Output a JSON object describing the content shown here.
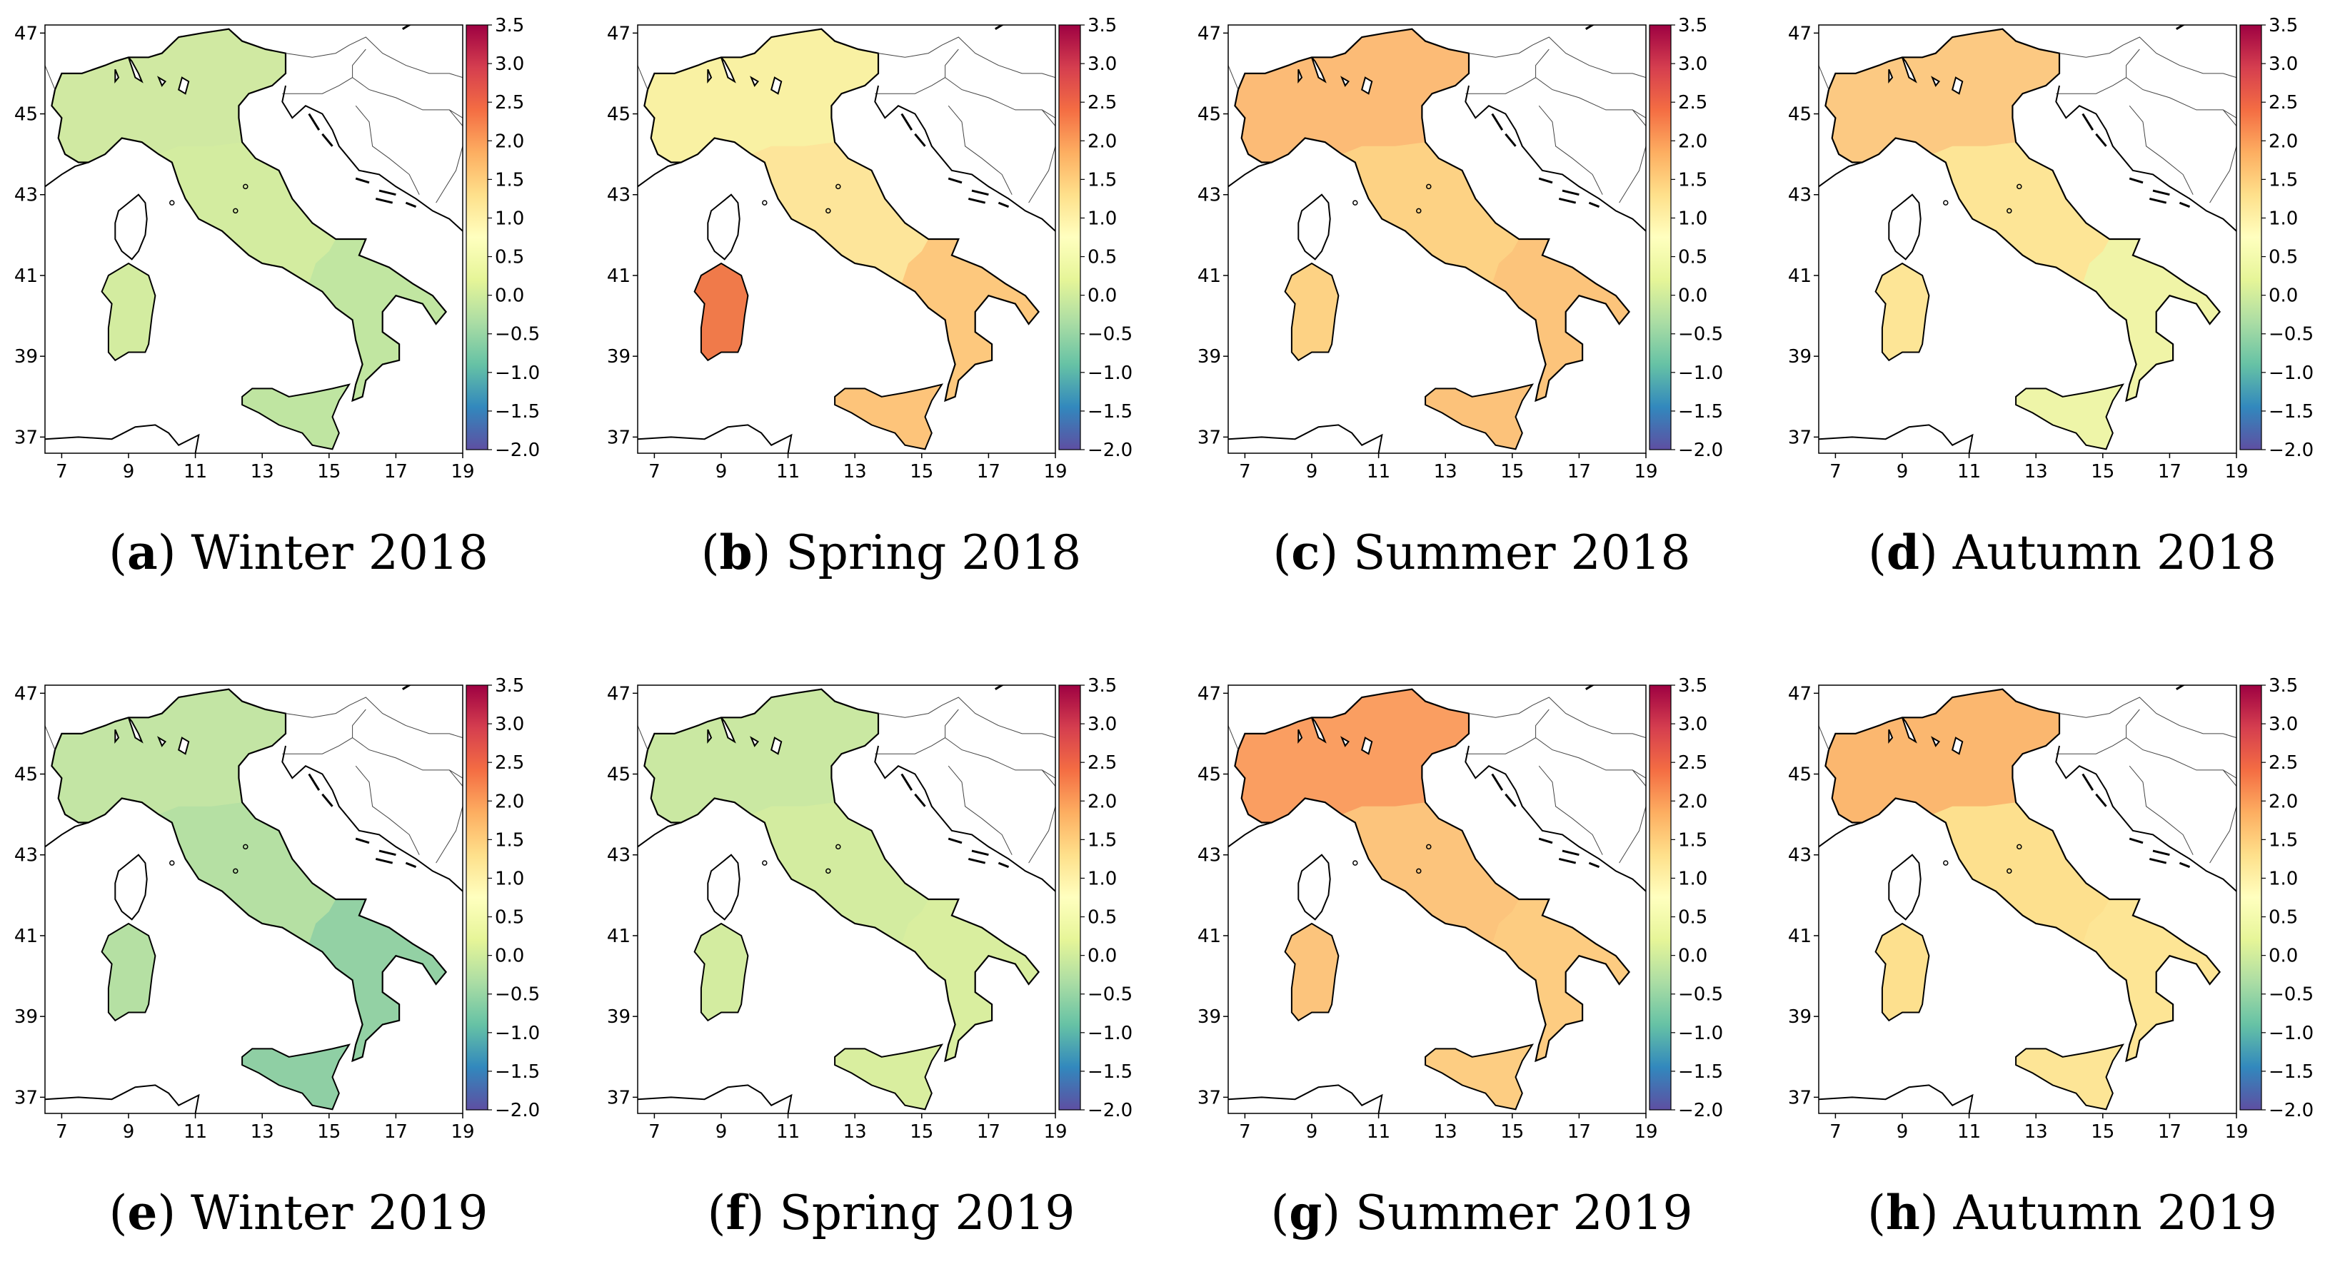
{
  "figure": {
    "x_ticks": [
      "7",
      "9",
      "11",
      "13",
      "15",
      "17",
      "19"
    ],
    "y_ticks": [
      "47",
      "45",
      "43",
      "41",
      "39",
      "37"
    ],
    "colorbar": {
      "ticks": [
        "3.5",
        "3.0",
        "2.5",
        "2.0",
        "1.5",
        "1.0",
        "0.5",
        "0.0",
        "−1.0",
        "−1.5",
        "−2.0"
      ],
      "mid_tick": "−0.5",
      "range": [
        -2.0,
        3.5
      ],
      "colormap": "Spectral_r",
      "colors": [
        "#5e4fa2",
        "#3288bd",
        "#66c2a5",
        "#abdda4",
        "#e6f598",
        "#ffffbf",
        "#fee08b",
        "#fdae61",
        "#f46d43",
        "#d53e4f",
        "#9e0142"
      ]
    },
    "panels": [
      {
        "id": "a",
        "letter": "a",
        "title": "Winter 2018",
        "value": 0.4,
        "fill": "#d3eca0",
        "north": "#cfe9a2",
        "south": "#bfe5a1"
      },
      {
        "id": "b",
        "letter": "b",
        "title": "Spring 2018",
        "value": 1.4,
        "fill": "#fde59a",
        "north": "#f8f2a4",
        "south": "#fdc47a",
        "sardinia": "#f07a4a"
      },
      {
        "id": "c",
        "letter": "c",
        "title": "Summer 2018",
        "value": 1.6,
        "fill": "#fdd284",
        "north": "#fcb874",
        "south": "#fcc27a"
      },
      {
        "id": "d",
        "letter": "d",
        "title": "Autumn 2018",
        "value": 1.3,
        "fill": "#fde596",
        "north": "#fcc580",
        "south": "#eef5a8"
      },
      {
        "id": "e",
        "letter": "e",
        "title": "Winter 2019",
        "value": 0.0,
        "fill": "#b5e0a3",
        "north": "#c4e6a4",
        "south": "#8fcfa4"
      },
      {
        "id": "f",
        "letter": "f",
        "title": "Spring 2019",
        "value": 0.3,
        "fill": "#d3eca0",
        "north": "#c9e8a2",
        "south": "#d9ee9f"
      },
      {
        "id": "g",
        "letter": "g",
        "title": "Summer 2019",
        "value": 1.8,
        "fill": "#fcc47c",
        "north": "#f99a5e",
        "south": "#fdcd82"
      },
      {
        "id": "h",
        "letter": "h",
        "title": "Autumn 2019",
        "value": 1.4,
        "fill": "#fde08e",
        "north": "#fbb36c",
        "south": "#fde596"
      }
    ]
  }
}
